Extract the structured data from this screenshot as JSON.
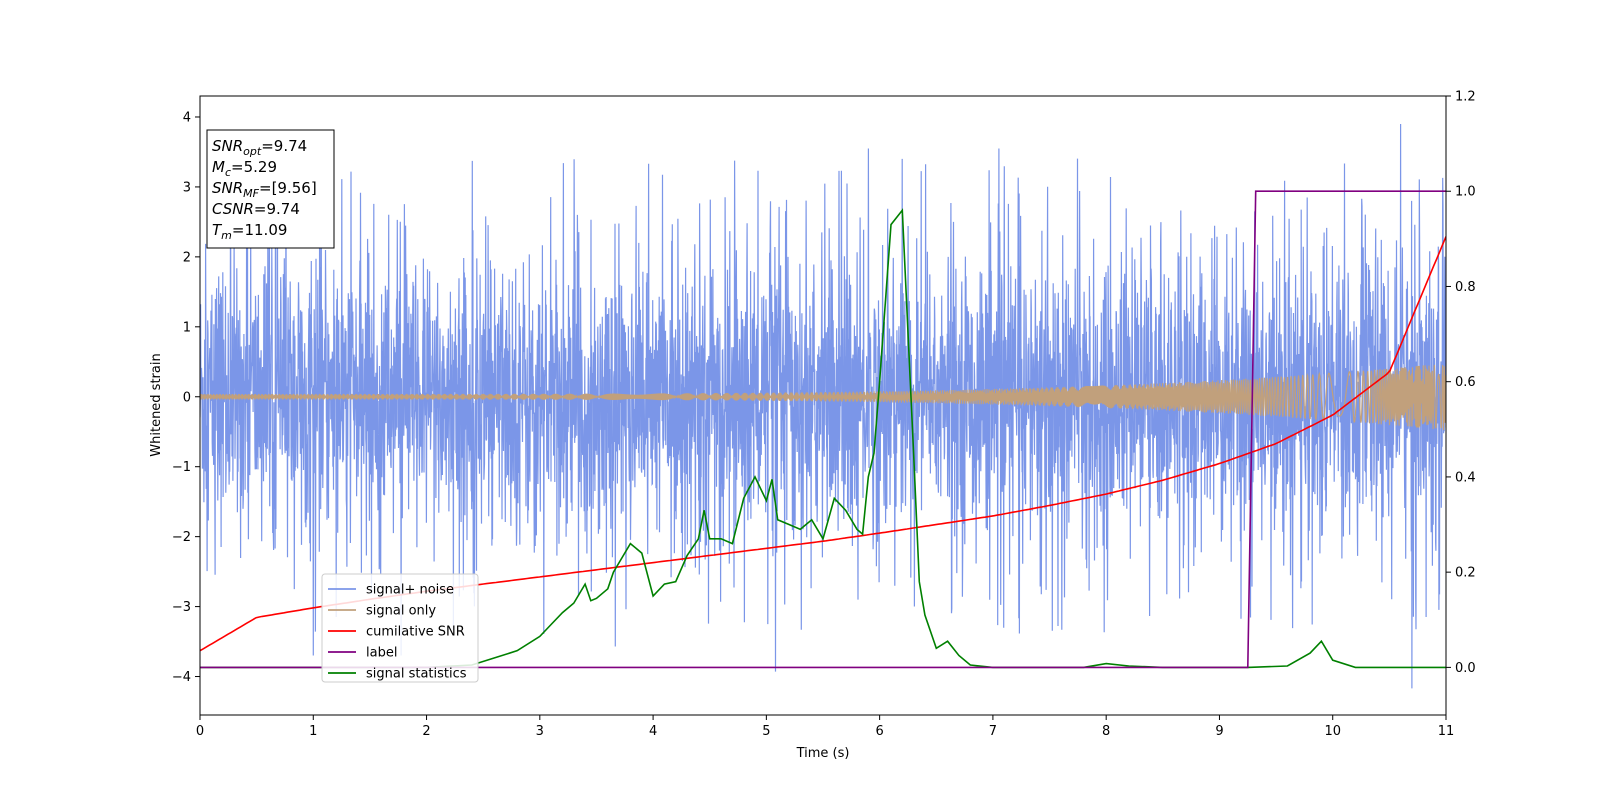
{
  "chart_data": {
    "type": "line",
    "xlabel": "Time (s)",
    "ylabel": "Whitened strain",
    "xlim": [
      0,
      11
    ],
    "ylim_left": [
      -4.55,
      4.3
    ],
    "ylim_right": [
      -0.1,
      1.2
    ],
    "x_ticks": [
      0,
      1,
      2,
      3,
      4,
      5,
      6,
      7,
      8,
      9,
      10,
      11
    ],
    "y_ticks_left": [
      -4,
      -3,
      -2,
      -1,
      0,
      1,
      2,
      3,
      4
    ],
    "y_ticks_right": [
      0.0,
      0.2,
      0.4,
      0.6,
      0.8,
      1.0,
      1.2
    ],
    "grid": false,
    "legend_position": "lower-left",
    "info_box": [
      {
        "base": "SNR",
        "sub": "opt",
        "value": "=9.74"
      },
      {
        "base": "M",
        "sub": "c",
        "value": "=5.29"
      },
      {
        "base": "SNR",
        "sub": "MF",
        "value": "=[9.56]"
      },
      {
        "base": "CSNR",
        "sub": "",
        "value": "=9.74"
      },
      {
        "base": "T",
        "sub": "m",
        "value": "=11.09"
      }
    ],
    "series": [
      {
        "name": "signal+ noise",
        "color": "#7b96e8",
        "axis": "left",
        "kind": "noise",
        "noise_envelope": 2.4,
        "noise_peak_max": 3.9,
        "noise_peak_min": -4.17
      },
      {
        "name": "signal only",
        "color": "#c1a07c",
        "axis": "left",
        "kind": "chirp",
        "amplitude_start": 0.04,
        "amplitude_end": 0.48
      },
      {
        "name": "cumilative SNR",
        "color": "#ff0000",
        "axis": "right",
        "x": [
          0,
          0.5,
          1,
          1.5,
          2,
          2.5,
          3,
          3.5,
          4,
          4.5,
          5,
          5.5,
          6,
          6.5,
          7,
          7.5,
          8,
          8.5,
          9,
          9.5,
          10,
          10.5,
          11
        ],
        "y": [
          0.035,
          0.105,
          0.125,
          0.143,
          0.16,
          0.175,
          0.19,
          0.205,
          0.22,
          0.235,
          0.25,
          0.265,
          0.282,
          0.3,
          0.318,
          0.34,
          0.364,
          0.393,
          0.428,
          0.47,
          0.53,
          0.62,
          0.905
        ]
      },
      {
        "name": "label",
        "color": "#800080",
        "axis": "right",
        "x": [
          0,
          9.25,
          9.32,
          11
        ],
        "y": [
          0,
          0,
          1,
          1
        ]
      },
      {
        "name": "signal statistics",
        "color": "#008000",
        "axis": "right",
        "x": [
          0,
          1,
          2,
          2.4,
          2.6,
          2.8,
          3.0,
          3.1,
          3.2,
          3.3,
          3.4,
          3.45,
          3.5,
          3.6,
          3.65,
          3.7,
          3.8,
          3.9,
          4.0,
          4.1,
          4.2,
          4.3,
          4.4,
          4.45,
          4.5,
          4.6,
          4.7,
          4.8,
          4.9,
          5.0,
          5.05,
          5.1,
          5.2,
          5.3,
          5.4,
          5.5,
          5.6,
          5.7,
          5.8,
          5.85,
          5.9,
          5.95,
          6.0,
          6.1,
          6.2,
          6.3,
          6.35,
          6.4,
          6.5,
          6.6,
          6.7,
          6.8,
          7.0,
          7.2,
          7.5,
          7.8,
          8.0,
          8.2,
          8.5,
          9.0,
          9.25,
          9.6,
          9.8,
          9.9,
          10.0,
          10.2,
          11.0
        ],
        "y": [
          0.0,
          0.0,
          0.0,
          0.005,
          0.02,
          0.035,
          0.065,
          0.09,
          0.115,
          0.135,
          0.175,
          0.14,
          0.145,
          0.165,
          0.2,
          0.22,
          0.26,
          0.24,
          0.15,
          0.175,
          0.18,
          0.235,
          0.27,
          0.33,
          0.27,
          0.27,
          0.26,
          0.355,
          0.4,
          0.35,
          0.395,
          0.31,
          0.3,
          0.29,
          0.31,
          0.27,
          0.355,
          0.33,
          0.29,
          0.28,
          0.4,
          0.45,
          0.6,
          0.93,
          0.96,
          0.45,
          0.18,
          0.11,
          0.04,
          0.055,
          0.025,
          0.005,
          0.0,
          0.0,
          0.0,
          0.0,
          0.008,
          0.003,
          0.0,
          0.0,
          0.0,
          0.003,
          0.03,
          0.055,
          0.015,
          0.0,
          0.0
        ]
      }
    ]
  }
}
